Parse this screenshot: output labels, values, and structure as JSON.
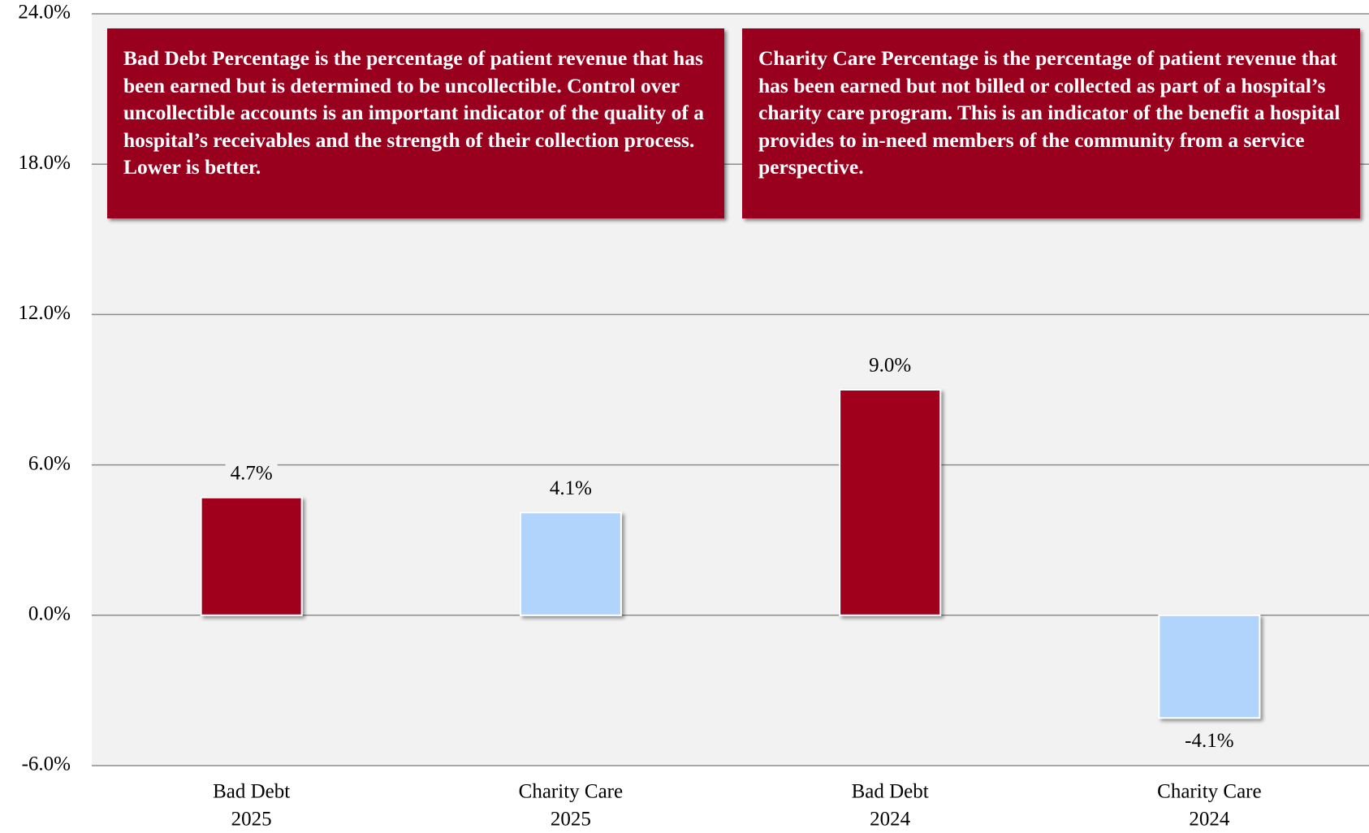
{
  "chart_data": {
    "type": "bar",
    "categories": [
      [
        "Bad Debt",
        "2025"
      ],
      [
        "Charity Care",
        "2025"
      ],
      [
        "Bad Debt",
        "2024"
      ],
      [
        "Charity Care",
        "2024"
      ]
    ],
    "values": [
      4.7,
      4.1,
      9.0,
      -4.1
    ],
    "value_labels": [
      "4.7%",
      "4.1%",
      "9.0%",
      "-4.1%"
    ],
    "colors": [
      "#a0001e",
      "#b0d4fc",
      "#a0001e",
      "#b0d4fc"
    ],
    "ylim": [
      -6,
      24
    ],
    "yticks": [
      {
        "value": -6,
        "label": "-6.0%"
      },
      {
        "value": 0,
        "label": "0.0%"
      },
      {
        "value": 6,
        "label": "6.0%"
      },
      {
        "value": 12,
        "label": "12.0%"
      },
      {
        "value": 18,
        "label": "18.0%"
      },
      {
        "value": 24,
        "label": "24.0%"
      }
    ],
    "grid": true,
    "annotations": [
      "Bad Debt Percentage is the percentage of patient revenue that has been earned but is determined to be uncollectible. Control over uncollectible accounts is an important indicator of the quality of a hospital’s receivables and the strength of their collection process. Lower is better.",
      "Charity Care Percentage is the percentage of patient revenue that has been earned but not billed or collected as part of a hospital’s charity care program. This is an indicator of the benefit a hospital provides to in-need members of the community from a service perspective."
    ]
  }
}
